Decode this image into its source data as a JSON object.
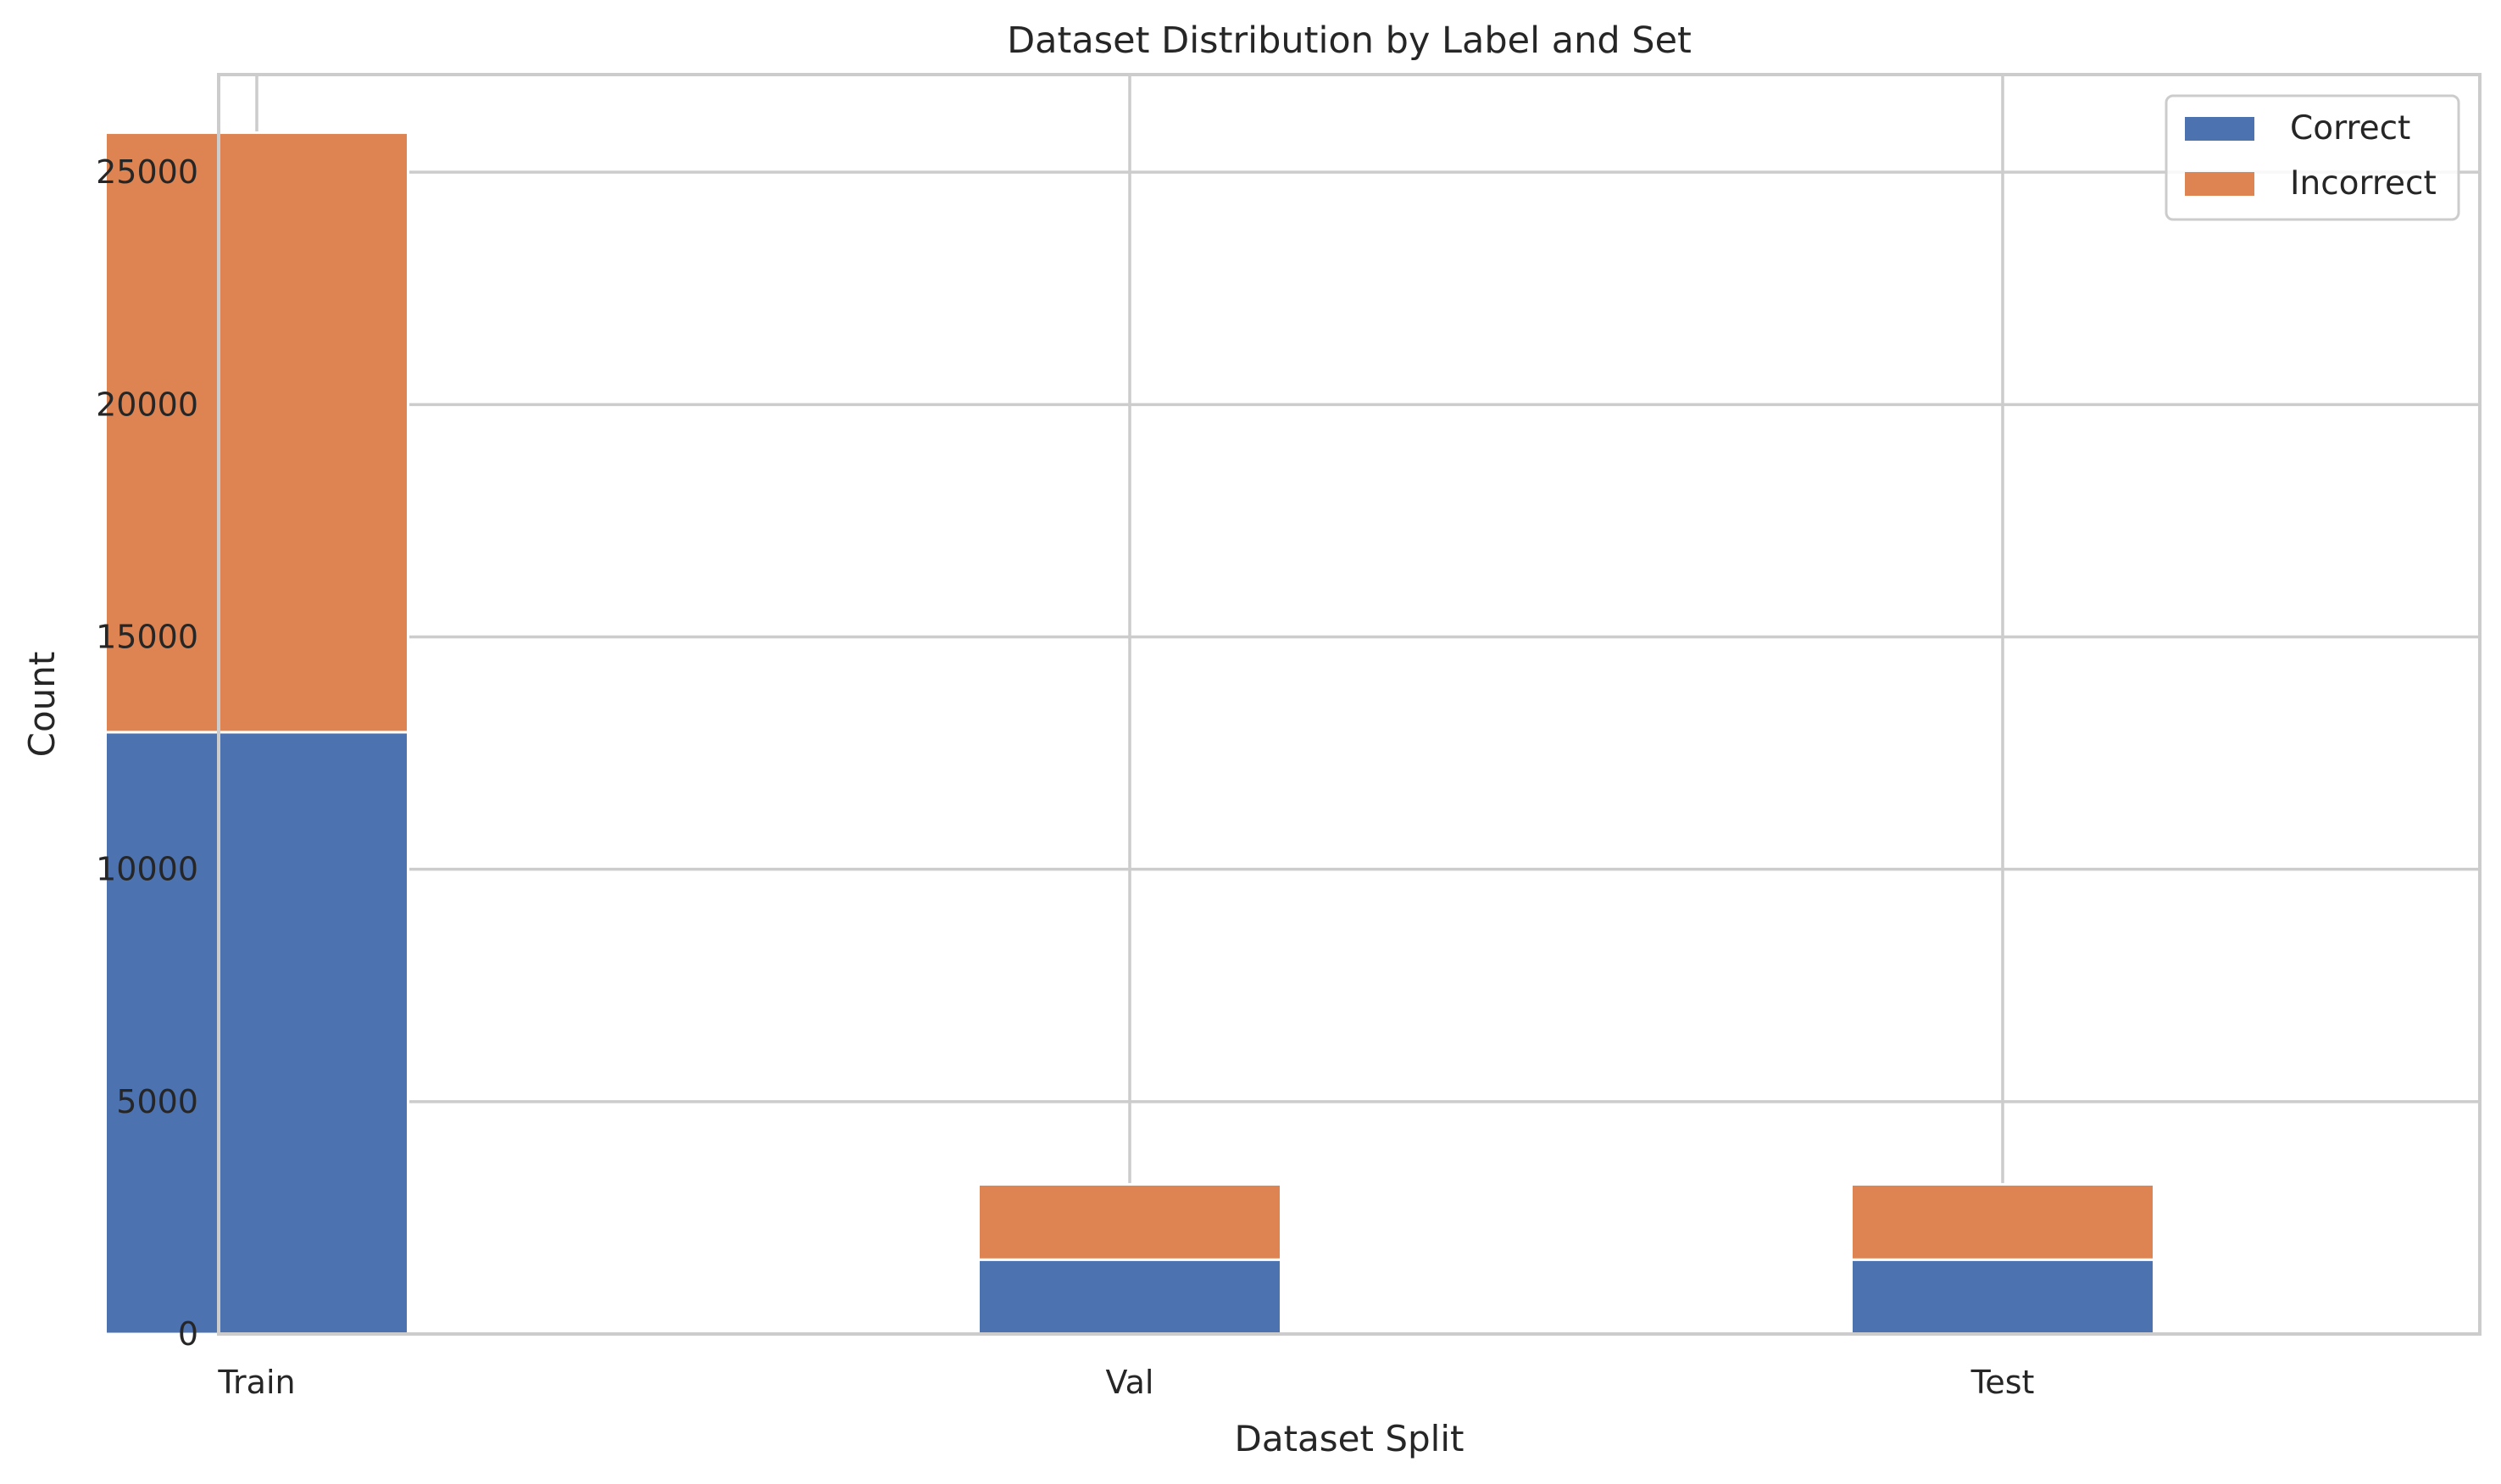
{
  "chart_data": {
    "type": "bar",
    "stacked": true,
    "title": "Dataset Distribution by Label and Set",
    "xlabel": "Dataset Split",
    "ylabel": "Count",
    "categories": [
      "Train",
      "Val",
      "Test"
    ],
    "series": [
      {
        "name": "Correct",
        "values": [
          12950,
          1600,
          1600
        ],
        "color": "#4c72b0"
      },
      {
        "name": "Incorrect",
        "values": [
          12900,
          1620,
          1620
        ],
        "color": "#dd8452"
      }
    ],
    "ylim": [
      0,
      27100
    ],
    "yticks": [
      0,
      5000,
      10000,
      15000,
      20000,
      25000
    ],
    "grid": true,
    "legend": {
      "position": "top-right"
    }
  }
}
